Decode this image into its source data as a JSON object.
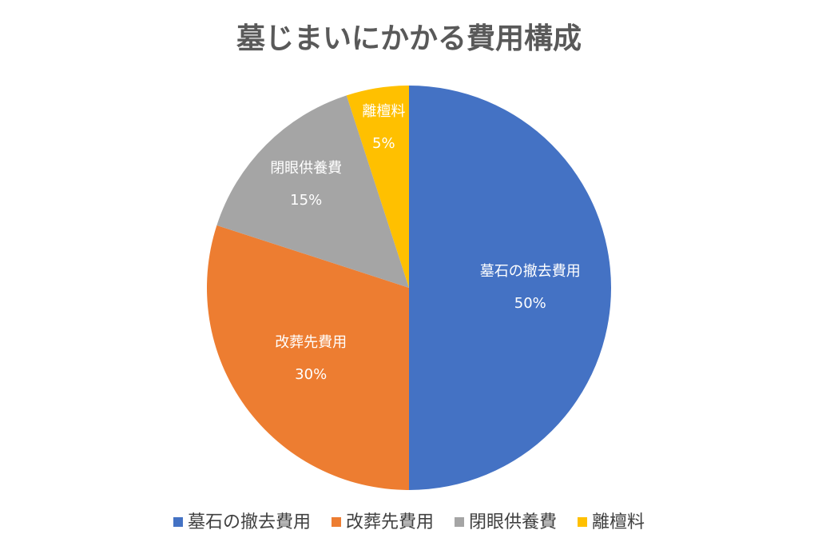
{
  "chart_data": {
    "type": "pie",
    "title": "墓じまいにかかる費用構成",
    "categories": [
      "墓石の撤去費用",
      "改葬先費用",
      "閉眼供養費",
      "離檀料"
    ],
    "values": [
      50,
      30,
      15,
      5
    ],
    "value_labels": [
      "50%",
      "30%",
      "15%",
      "5%"
    ],
    "colors": [
      "#4472c4",
      "#ed7d31",
      "#a5a5a5",
      "#ffc000"
    ],
    "legend": "bottom"
  }
}
